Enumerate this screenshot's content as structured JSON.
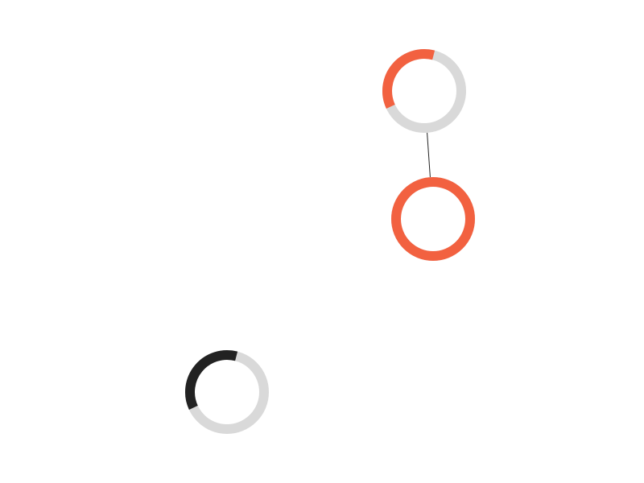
{
  "colors": {
    "background": "#ffffff",
    "track": "#d9d9d9",
    "accent": "#f26140",
    "dark": "#222222",
    "edge": "#222222"
  },
  "nodes": [
    {
      "id": "top-node",
      "progress": 0.36,
      "progress_color": "accent"
    },
    {
      "id": "middle-node",
      "progress": 1.0,
      "progress_color": "accent"
    },
    {
      "id": "bottom-node",
      "progress": 0.36,
      "progress_color": "dark"
    }
  ],
  "edges": [
    {
      "from": "top-node",
      "to": "middle-node"
    }
  ]
}
